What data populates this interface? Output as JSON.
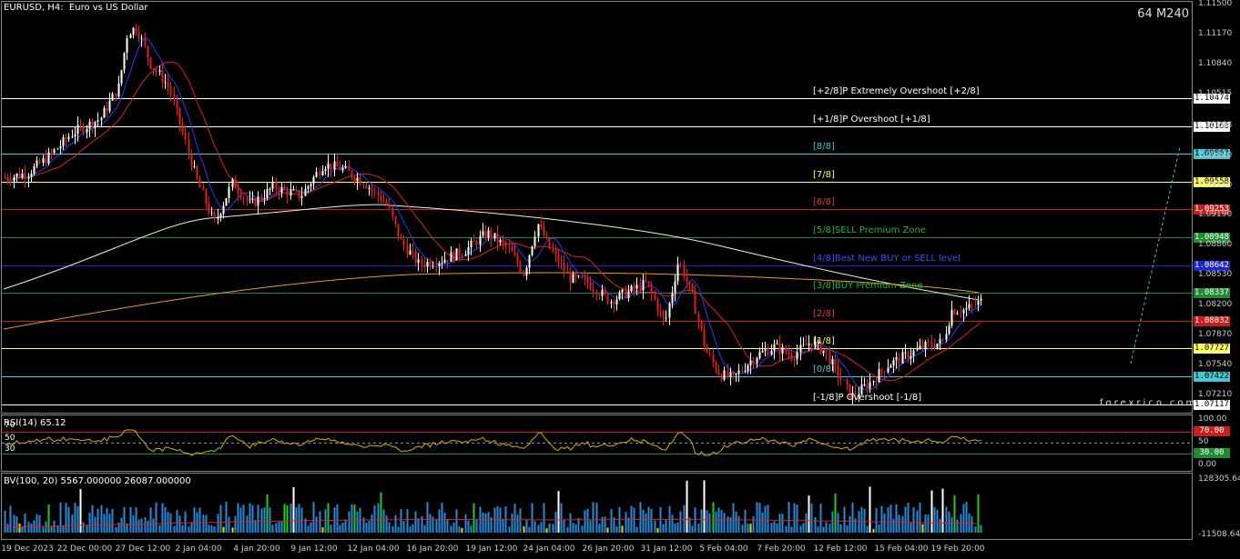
{
  "header": {
    "title": "EURUSD, H4:  Euro vs US Dollar",
    "timeframe": "64 M240",
    "brand": "forexrico.com"
  },
  "price_axis": [
    "1.11500",
    "1.11170",
    "1.10840",
    "1.10515",
    "1.10168",
    "1.09840",
    "1.09510",
    "1.09190",
    "1.08860",
    "1.08530",
    "1.08200",
    "1.07870",
    "1.07540",
    "1.07210"
  ],
  "time_axis": [
    "19 Dec 2023",
    "22 Dec 00:00",
    "27 Dec 12:00",
    "2 Jan 04:00",
    "4 Jan 20:00",
    "9 Jan 12:00",
    "12 Jan 04:00",
    "16 Jan 20:00",
    "19 Jan 12:00",
    "24 Jan 04:00",
    "26 Jan 20:00",
    "31 Jan 12:00",
    "5 Feb 04:00",
    "7 Feb 20:00",
    "12 Feb 12:00",
    "15 Feb 04:00",
    "19 Feb 20:00"
  ],
  "murrey_levels": [
    {
      "label": "[+2/8]P Extremely Overshoot [+2/8]",
      "price": "1.10474",
      "line_color": "#ffffff",
      "text_color": "#ffffff",
      "box_bg": "#ffffff",
      "box_fg": "#000000"
    },
    {
      "label": "[+1/8]P Overshoot [+1/8]",
      "price": "1.10168",
      "line_color": "#ffffff",
      "text_color": "#ffffff",
      "box_bg": "#ffffff",
      "box_fg": "#000000"
    },
    {
      "label": "[8/8]",
      "price": "1.09863",
      "line_color": "#46c8d2",
      "text_color": "#46c8d2",
      "box_bg": "#46c8d2",
      "box_fg": "#000000"
    },
    {
      "label": "[7/8]",
      "price": "1.09558",
      "line_color": "#ffff66",
      "text_color": "#ffff66",
      "box_bg": "#ffff66",
      "box_fg": "#000000"
    },
    {
      "label": "[6/8]",
      "price": "1.09253",
      "line_color": "#c81e1e",
      "text_color": "#e03a3a",
      "box_bg": "#c81e1e",
      "box_fg": "#ffffff"
    },
    {
      "label": "[5/8]SELL Premium Zone",
      "price": "1.08948",
      "line_color": "#1e8c32",
      "text_color": "#28b43c",
      "box_bg": "#1e8c32",
      "box_fg": "#ffffff"
    },
    {
      "label": "[4/8]Best New BUY or SELL level",
      "price": "1.08642",
      "line_color": "#1e28c8",
      "text_color": "#3a4aff",
      "box_bg": "#1e28c8",
      "box_fg": "#ffffff"
    },
    {
      "label": "[3/8]BUY Premium Zone",
      "price": "1.08337",
      "line_color": "#1e8c32",
      "text_color": "#28b43c",
      "box_bg": "#1e8c32",
      "box_fg": "#ffffff"
    },
    {
      "label": "[2/8]",
      "price": "1.08032",
      "line_color": "#c81e1e",
      "text_color": "#e03a3a",
      "box_bg": "#c81e1e",
      "box_fg": "#ffffff"
    },
    {
      "label": "[1/8]",
      "price": "1.07727",
      "line_color": "#ffff66",
      "text_color": "#ffff66",
      "box_bg": "#ffff66",
      "box_fg": "#000000"
    },
    {
      "label": "[0/8]",
      "price": "1.07422",
      "line_color": "#46c8d2",
      "text_color": "#46c8d2",
      "box_bg": "#46c8d2",
      "box_fg": "#000000"
    },
    {
      "label": "[-1/8]P Overshoot [-1/8]",
      "price": "1.07117",
      "line_color": "#ffffff",
      "text_color": "#ffffff",
      "box_bg": "#ffffff",
      "box_fg": "#000000"
    }
  ],
  "rsi": {
    "label": "RSI(14) 65.12",
    "axis": [
      "100.00",
      "70.00",
      "50",
      "30.00",
      "0.00"
    ],
    "left_ticks": [
      "70",
      "50",
      "30"
    ],
    "overbought": "70.00",
    "oversold": "30.00"
  },
  "volume": {
    "label": "BV(100, 20) 5567.000000 26087.000000",
    "axis_top": "128305.645",
    "axis_bottom": "-11508.645"
  }
}
